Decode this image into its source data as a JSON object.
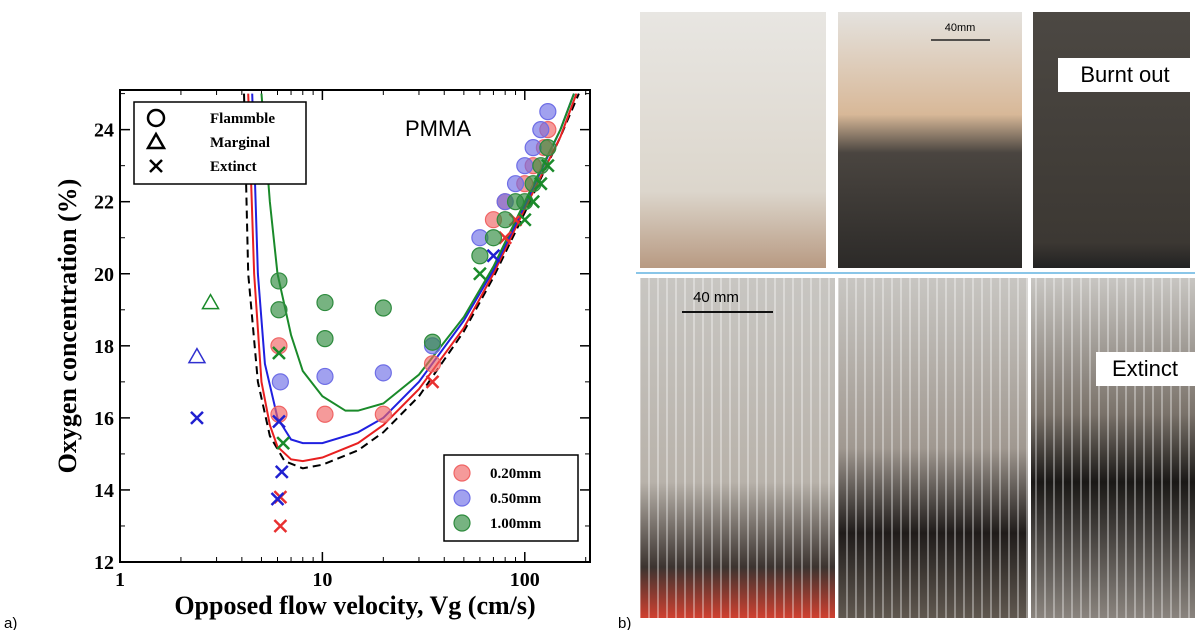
{
  "chart_data": {
    "type": "scatter",
    "panel_label": "a)",
    "annotation": "PMMA",
    "x_label": "Opposed flow velocity, Vg (cm/s)",
    "y_label": "Oxygen concentration (%)",
    "xscale": "log",
    "xlim": [
      1,
      210
    ],
    "ylim": [
      12,
      25.1
    ],
    "xticks": [
      1,
      10,
      100
    ],
    "xminorticks": [
      2,
      3,
      4,
      5,
      6,
      7,
      8,
      9,
      20,
      30,
      40,
      50,
      60,
      70,
      80,
      90,
      200
    ],
    "yticks": [
      12,
      14,
      16,
      18,
      20,
      22,
      24
    ],
    "yminorticks": [
      13,
      15,
      17,
      19,
      21,
      23,
      25
    ],
    "marker_legend": [
      {
        "name": "Flammble",
        "marker": "circle"
      },
      {
        "name": "Marginal",
        "marker": "triangle"
      },
      {
        "name": "Extinct",
        "marker": "cross"
      }
    ],
    "size_legend": [
      {
        "name": "0.20mm",
        "color": "#f06464"
      },
      {
        "name": "0.50mm",
        "color": "#6e6ee6"
      },
      {
        "name": "1.00mm",
        "color": "#2e8b3e"
      }
    ],
    "series": [
      {
        "color": "#f06464",
        "marker": "circle",
        "x": [
          6.1,
          6.1,
          10.3,
          20,
          35,
          70,
          80,
          100,
          110,
          125,
          130
        ],
        "values": [
          18.0,
          16.1,
          16.1,
          16.1,
          17.5,
          21.5,
          22,
          22.5,
          23,
          23.5,
          24
        ]
      },
      {
        "color": "#e83030",
        "marker": "cross",
        "x": [
          6.2,
          6.2,
          35,
          80,
          90
        ],
        "values": [
          13.0,
          13.8,
          17.0,
          21.0,
          21.5
        ]
      },
      {
        "color": "#6e6ee6",
        "marker": "circle",
        "x": [
          6.2,
          10.3,
          20,
          35,
          60,
          80,
          90,
          100,
          110,
          120,
          130
        ],
        "values": [
          17.0,
          17.15,
          17.25,
          18.0,
          21,
          22,
          22.5,
          23,
          23.5,
          24,
          24.5
        ]
      },
      {
        "color": "#2020d0",
        "marker": "cross",
        "x": [
          2.4,
          6.1,
          6.3,
          6.0,
          70
        ],
        "values": [
          16,
          15.9,
          14.5,
          13.75,
          20.5
        ]
      },
      {
        "color": "#3030d0",
        "marker": "triangle",
        "x": [
          2.4
        ],
        "values": [
          17.7
        ]
      },
      {
        "color": "#2e8b3e",
        "marker": "circle",
        "x": [
          6.1,
          6.1,
          10.3,
          10.3,
          20,
          35,
          60,
          70,
          80,
          90,
          100,
          110,
          120,
          130
        ],
        "values": [
          19.8,
          19.0,
          19.2,
          18.2,
          19.05,
          18.1,
          20.5,
          21,
          21.5,
          22,
          22,
          22.5,
          23,
          23.5
        ]
      },
      {
        "color": "#1a8a2a",
        "marker": "cross",
        "x": [
          6.1,
          6.4,
          60,
          100,
          110,
          120,
          130
        ],
        "values": [
          17.8,
          15.3,
          20,
          21.5,
          22,
          22.5,
          23
        ]
      },
      {
        "color": "#1a8a2a",
        "marker": "triangle",
        "x": [
          2.8
        ],
        "values": [
          19.2
        ]
      }
    ],
    "curves": [
      {
        "color": "#000000",
        "dash": true,
        "x": [
          4.1,
          4.3,
          4.8,
          5.5,
          6.5,
          8,
          10,
          15,
          20,
          30,
          50,
          70,
          100,
          150,
          185
        ],
        "values": [
          25,
          20,
          17,
          15.5,
          14.8,
          14.6,
          14.7,
          15.1,
          15.6,
          16.6,
          18.4,
          19.9,
          21.7,
          23.8,
          25
        ]
      },
      {
        "color": "#e82020",
        "dash": false,
        "x": [
          4.3,
          4.6,
          5,
          5.5,
          6,
          7,
          8,
          10,
          15,
          20,
          30,
          50,
          70,
          100,
          150,
          180
        ],
        "values": [
          25,
          20,
          17,
          15.8,
          15.2,
          14.85,
          14.8,
          14.9,
          15.3,
          15.8,
          16.8,
          18.5,
          20,
          21.8,
          23.8,
          25
        ]
      },
      {
        "color": "#2020e0",
        "dash": false,
        "x": [
          4.5,
          4.8,
          5.2,
          6,
          7,
          8,
          10,
          15,
          20,
          30,
          50,
          70,
          100,
          150,
          175
        ],
        "values": [
          25,
          20,
          17.5,
          16,
          15.4,
          15.3,
          15.3,
          15.6,
          16,
          17,
          18.7,
          20.1,
          21.9,
          24,
          25
        ]
      },
      {
        "color": "#1a8a2a",
        "dash": false,
        "x": [
          5,
          5.5,
          6,
          7,
          8,
          10,
          13,
          15,
          20,
          30,
          50,
          70,
          100,
          150,
          175
        ],
        "values": [
          25,
          22,
          20,
          18.3,
          17.3,
          16.6,
          16.2,
          16.2,
          16.4,
          17.2,
          18.8,
          20.2,
          22,
          24,
          25
        ]
      }
    ]
  },
  "photos": {
    "panel_label": "b)",
    "top_label": "Burnt out",
    "bottom_label": "Extinct",
    "top_scale": "40mm",
    "bottom_scale": "40 mm"
  }
}
